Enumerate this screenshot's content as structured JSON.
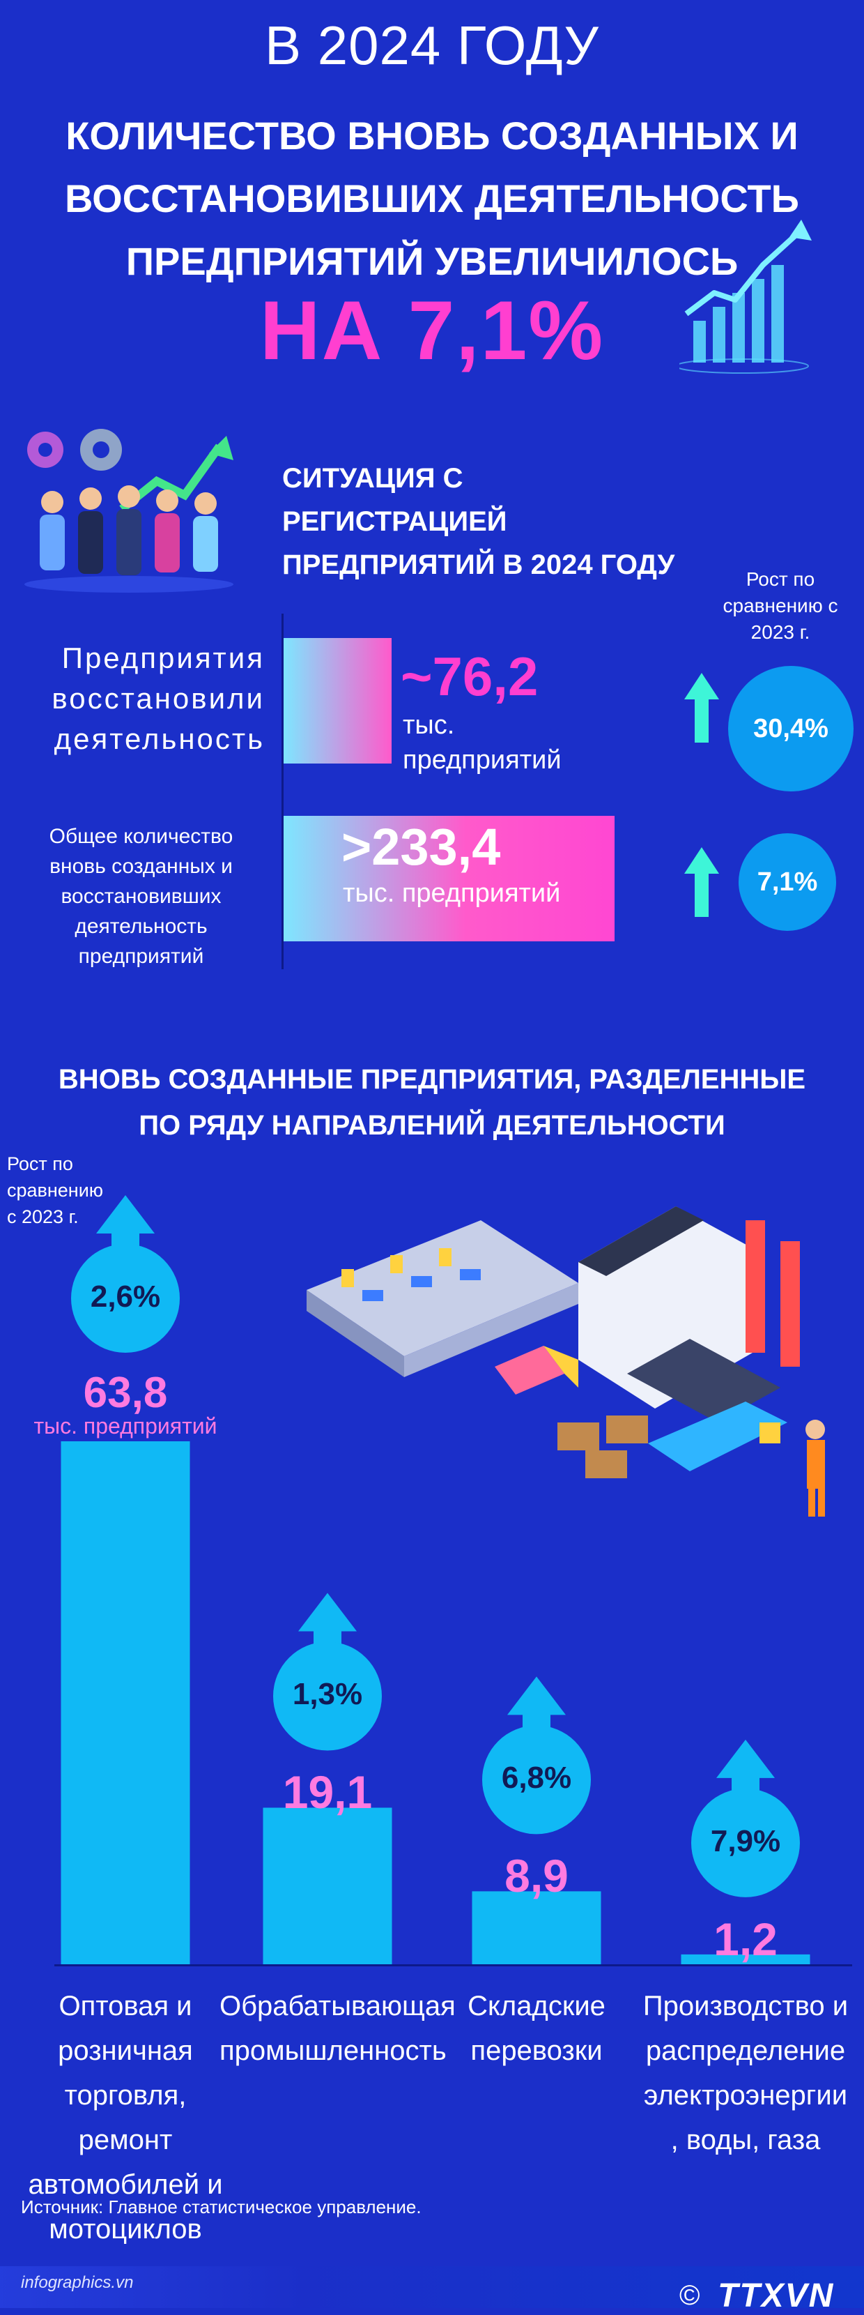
{
  "header": {
    "year_title": "В 2024 ГОДУ",
    "title_lines": [
      "КОЛИЧЕСТВО ВНОВЬ СОЗДАННЫХ И",
      "ВОССТАНОВИВШИХ ДЕЯТЕЛЬНОСТЬ",
      "ПРЕДПРИЯТИЙ УВЕЛИЧИЛОСЬ"
    ],
    "highlight": "НА 7,1%"
  },
  "registration": {
    "title_lines": [
      "СИТУАЦИЯ С",
      "РЕГИСТРАЦИЕЙ",
      "ПРЕДПРИЯТИЙ В 2024 ГОДУ"
    ],
    "growth_caption_lines": [
      "Рост по",
      "сравнению с",
      "2023 г."
    ],
    "rows": [
      {
        "label_lines": [
          "Предприятия",
          "восстановили",
          "деятельность"
        ],
        "value": "~76,2",
        "unit_lines": [
          "тыс.",
          "предприятий"
        ],
        "growth": "30,4%",
        "number": 76.2
      },
      {
        "label_lines": [
          "Общее количество",
          "вновь созданных и",
          "восстановивших",
          "деятельность",
          "предприятий"
        ],
        "value": ">233,4",
        "unit_lines": [
          "тыс. предприятий"
        ],
        "growth": "7,1%",
        "number": 233.4
      }
    ],
    "colors": {
      "bar_start": "#7ee6ff",
      "bar_end": "#ff47d2",
      "circle": "#0c9bf0",
      "accent": "#ff3fd0"
    }
  },
  "sectors": {
    "title_lines": [
      "ВНОВЬ СОЗДАННЫЕ ПРЕДПРИЯТИЯ, РАЗДЕЛЕННЫЕ",
      "ПО РЯДУ НАПРАВЛЕНИЙ ДЕЯТЕЛЬНОСТИ"
    ],
    "growth_caption_lines": [
      "Рост по",
      "сравнению",
      "с 2023 г."
    ],
    "first_unit": "тыс. предприятий"
  },
  "chart_data": {
    "type": "bar",
    "categories": [
      "Оптовая и розничная торговля, ремонт автомобилей и мотоциклов",
      "Обрабатывающая промышленность",
      "Складские перевозки",
      "Производство и распределение электроэнергии, воды, газа"
    ],
    "category_lines": [
      [
        "Оптовая и",
        "розничная",
        "торговля, ремонт",
        "автомобилей и",
        "мотоциклов"
      ],
      [
        "Обрабатывающая",
        "промышленность"
      ],
      [
        "Складские",
        "перевозки"
      ],
      [
        "Производство и",
        "распределение",
        "электроэнергии",
        ", воды, газа"
      ]
    ],
    "values": [
      63.8,
      19.1,
      8.9,
      1.2
    ],
    "value_labels": [
      "63,8",
      "19,1",
      "8,9",
      "1,2"
    ],
    "growth_labels": [
      "2,6%",
      "1,3%",
      "6,8%",
      "7,9%"
    ],
    "unit": "тыс. предприятий",
    "ylim": [
      0,
      63.8
    ],
    "bar_color": "#10b9f5",
    "bubble_color": "#10b9f5",
    "value_color": "#ff7be0"
  },
  "footer": {
    "source": "Источник: Главное статистическое управление.",
    "site": "infographics.vn",
    "copyright": "©",
    "brand": "TTXVN"
  }
}
